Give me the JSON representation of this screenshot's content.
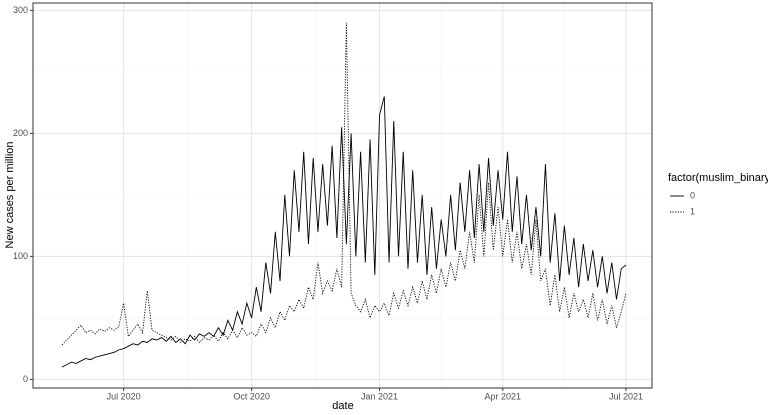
{
  "chart_data": {
    "type": "line",
    "x_label": "date",
    "y_label": "New cases per million",
    "legend_title": "factor(muslim_binary)",
    "legend_position": "right",
    "grid": true,
    "ylim": [
      -7,
      306
    ],
    "yticks": [
      0,
      100,
      200,
      300
    ],
    "categories": [
      null,
      null,
      null,
      null,
      null,
      null,
      null,
      null,
      null,
      null,
      null,
      null,
      null,
      "Jul 2020",
      null,
      null,
      null,
      null,
      null,
      null,
      null,
      null,
      null,
      null,
      null,
      null,
      null,
      null,
      null,
      null,
      null,
      null,
      null,
      null,
      null,
      null,
      null,
      null,
      null,
      null,
      "Oct 2020",
      null,
      null,
      null,
      null,
      null,
      null,
      null,
      null,
      null,
      null,
      null,
      null,
      null,
      null,
      null,
      null,
      null,
      null,
      null,
      null,
      null,
      null,
      null,
      null,
      null,
      null,
      "Jan 2021",
      null,
      null,
      null,
      null,
      null,
      null,
      null,
      null,
      null,
      null,
      null,
      null,
      null,
      null,
      null,
      null,
      null,
      null,
      null,
      null,
      null,
      null,
      null,
      null,
      null,
      "Apr 2021",
      null,
      null,
      null,
      null,
      null,
      null,
      null,
      null,
      null,
      null,
      null,
      null,
      null,
      null,
      null,
      null,
      null,
      null,
      null,
      null,
      null,
      null,
      null,
      null,
      null,
      "Jul 2021"
    ],
    "series": [
      {
        "name": "0",
        "color": "#000000",
        "dash": "solid",
        "values": [
          10,
          12,
          14,
          13,
          15,
          17,
          16,
          18,
          19,
          20,
          21,
          22,
          24,
          25,
          27,
          29,
          28,
          31,
          30,
          33,
          32,
          34,
          31,
          35,
          30,
          33,
          29,
          36,
          32,
          37,
          35,
          38,
          35,
          42,
          36,
          48,
          40,
          55,
          45,
          62,
          50,
          75,
          55,
          95,
          70,
          120,
          80,
          150,
          100,
          170,
          120,
          185,
          110,
          180,
          120,
          175,
          125,
          190,
          115,
          205,
          110,
          200,
          100,
          185,
          95,
          195,
          85,
          215,
          230,
          95,
          210,
          100,
          185,
          90,
          170,
          95,
          150,
          85,
          140,
          90,
          130,
          100,
          150,
          105,
          160,
          120,
          170,
          115,
          175,
          120,
          180,
          125,
          170,
          130,
          185,
          120,
          165,
          110,
          150,
          105,
          140,
          100,
          175,
          95,
          135,
          80,
          125,
          85,
          115,
          75,
          110,
          80,
          105,
          75,
          100,
          70,
          95,
          65,
          90,
          93
        ]
      },
      {
        "name": "1",
        "color": "#000000",
        "dash": "dotted",
        "values": [
          28,
          32,
          36,
          40,
          44,
          38,
          40,
          37,
          41,
          39,
          42,
          40,
          43,
          62,
          35,
          40,
          45,
          38,
          72,
          40,
          38,
          36,
          34,
          32,
          35,
          30,
          33,
          31,
          35,
          30,
          34,
          32,
          36,
          31,
          38,
          33,
          40,
          34,
          42,
          36,
          38,
          35,
          45,
          38,
          50,
          42,
          55,
          48,
          60,
          55,
          65,
          58,
          75,
          65,
          95,
          70,
          80,
          72,
          90,
          75,
          290,
          70,
          60,
          55,
          65,
          50,
          60,
          55,
          62,
          52,
          70,
          58,
          72,
          60,
          75,
          62,
          80,
          65,
          85,
          70,
          90,
          75,
          95,
          80,
          105,
          90,
          120,
          95,
          150,
          100,
          160,
          105,
          140,
          100,
          130,
          95,
          120,
          90,
          110,
          85,
          130,
          80,
          90,
          60,
          85,
          55,
          75,
          50,
          70,
          55,
          65,
          50,
          70,
          48,
          65,
          45,
          60,
          42,
          55,
          70
        ]
      }
    ]
  }
}
